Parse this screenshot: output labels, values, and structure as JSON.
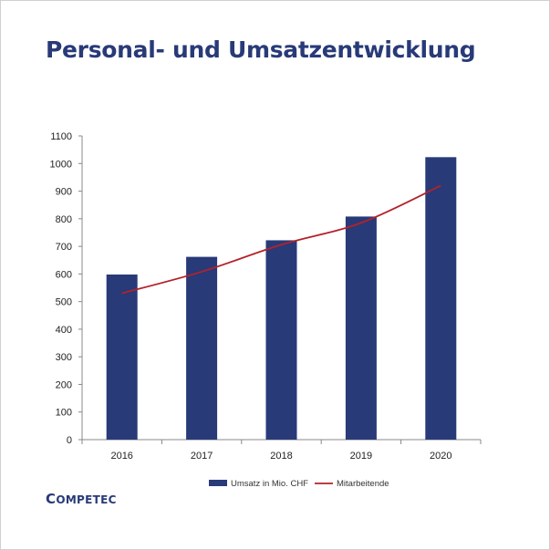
{
  "title": "Personal- und Umsatzentwicklung",
  "brand": "COMPETEC",
  "colors": {
    "bar": "#283a78",
    "line": "#b3222b",
    "title": "#283a78"
  },
  "chart_data": {
    "type": "bar",
    "title": "Personal- und Umsatzentwicklung",
    "categories": [
      "2016",
      "2017",
      "2018",
      "2019",
      "2020"
    ],
    "series": [
      {
        "name": "Umsatz in Mio. CHF",
        "type": "bar",
        "values": [
          598,
          662,
          722,
          808,
          1023
        ]
      },
      {
        "name": "Mitarbeitende",
        "type": "line",
        "values": [
          530,
          608,
          706,
          785,
          920
        ]
      }
    ],
    "y_ticks": [
      "0",
      "100",
      "200",
      "300",
      "400",
      "500",
      "600",
      "700",
      "800",
      "900",
      "1000",
      "1100"
    ],
    "ylim": [
      0,
      1100
    ],
    "grid": false,
    "legend_position": "bottom"
  }
}
